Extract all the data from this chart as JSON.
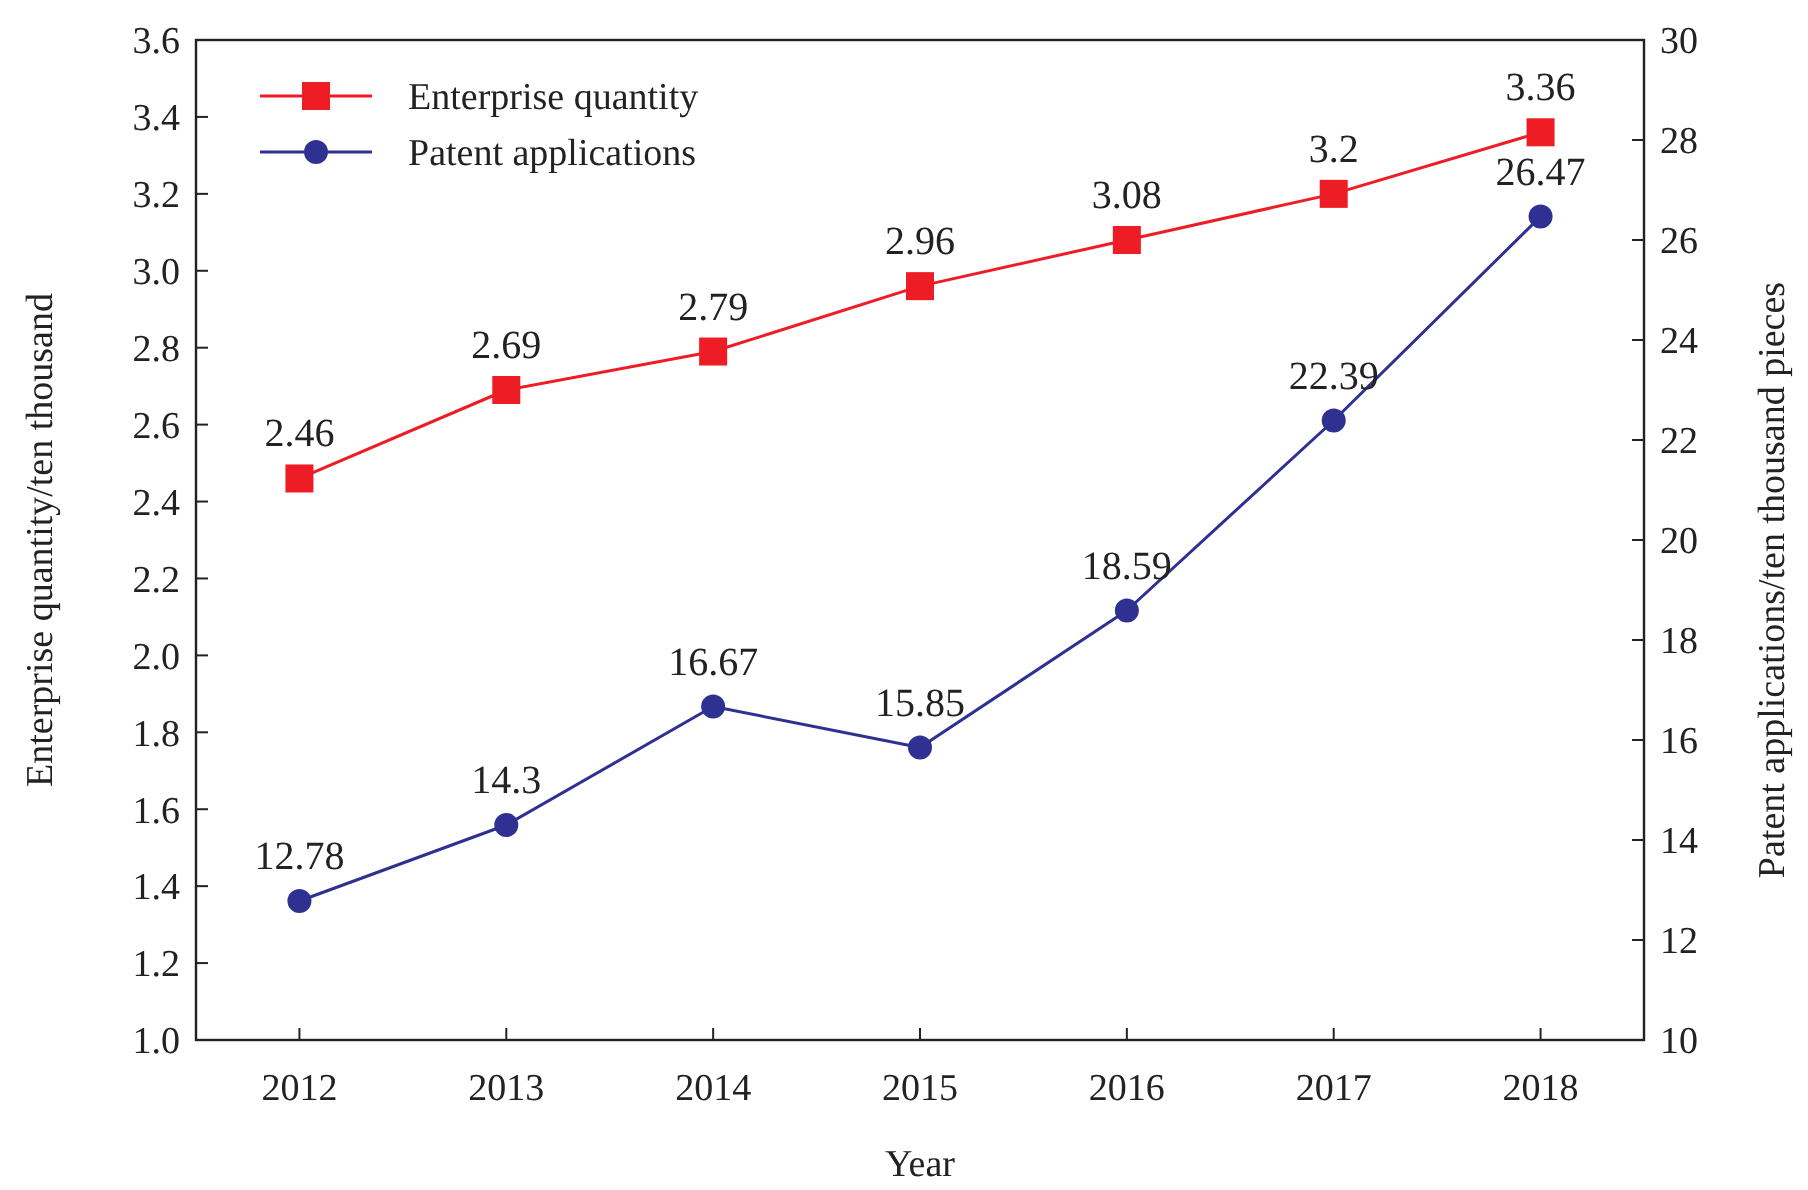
{
  "chart_data": {
    "type": "line",
    "categories": [
      "2012",
      "2013",
      "2014",
      "2015",
      "2016",
      "2017",
      "2018"
    ],
    "xlabel": "Year",
    "ylabel": "Enterprise quantity/ten thousand",
    "y2label": "Patent applications/ten thousand pieces",
    "series": [
      {
        "name": "Enterprise quantity",
        "color": "#ee1c25",
        "marker": "square",
        "values": [
          2.46,
          2.69,
          2.79,
          2.96,
          3.08,
          3.2,
          3.36
        ]
      },
      {
        "name": "Patent applications",
        "color": "#2e3192",
        "marker": "circle",
        "axis": "y2",
        "values": [
          12.78,
          14.3,
          16.67,
          15.85,
          18.59,
          22.39,
          26.47
        ]
      }
    ],
    "ylim": [
      1.0,
      3.6
    ],
    "yticks": [
      {
        "value": 1.0,
        "label": "1.0"
      },
      1.2,
      1.4,
      1.6,
      1.8,
      {
        "value": 2.0,
        "label": "2.0"
      },
      2.2,
      2.4,
      2.6,
      2.8,
      {
        "value": 3.0,
        "label": "3.0"
      },
      3.2,
      3.4,
      3.6
    ],
    "y2lim": [
      10,
      30
    ],
    "y2ticks": [
      10,
      12,
      14,
      16,
      18,
      20,
      22,
      24,
      26,
      28,
      30
    ],
    "data_labels": true,
    "legend": "top left",
    "grid": false,
    "line_style": "solid"
  }
}
